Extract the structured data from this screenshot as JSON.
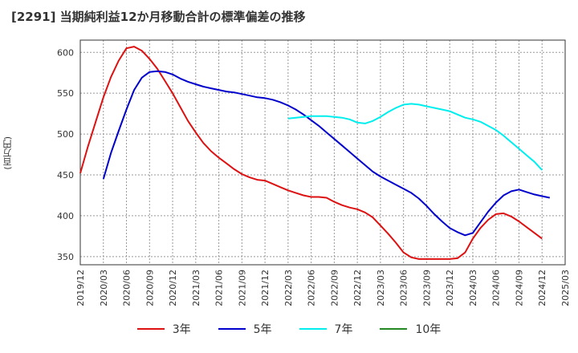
{
  "header": {
    "title": "[2291]  当期純利益12か月移動合計の標準偏差の推移"
  },
  "y_unit": "(百万円)",
  "chart_data": {
    "type": "line",
    "title": "[2291]  当期純利益12か月移動合計の標準偏差の推移",
    "ylabel": "(百万円)",
    "xlabel": "",
    "ylim": [
      340,
      615
    ],
    "x_range": [
      "2019-12",
      "2025-03"
    ],
    "yticks": [
      350,
      400,
      450,
      500,
      550,
      600
    ],
    "xticks": [
      "2019/12",
      "2020/03",
      "2020/06",
      "2020/09",
      "2020/12",
      "2021/03",
      "2021/06",
      "2021/09",
      "2021/12",
      "2022/03",
      "2022/06",
      "2022/09",
      "2022/12",
      "2023/03",
      "2023/06",
      "2023/09",
      "2023/12",
      "2024/03",
      "2024/06",
      "2024/09",
      "2024/12",
      "2025/03"
    ],
    "grid": true,
    "legend_position": "bottom",
    "series": [
      {
        "name": "3年",
        "color": "#dd1111",
        "points": [
          [
            "2019-12",
            452
          ],
          [
            "2020-01",
            485
          ],
          [
            "2020-02",
            515
          ],
          [
            "2020-03",
            545
          ],
          [
            "2020-04",
            570
          ],
          [
            "2020-05",
            590
          ],
          [
            "2020-06",
            605
          ],
          [
            "2020-07",
            607
          ],
          [
            "2020-08",
            602
          ],
          [
            "2020-09",
            592
          ],
          [
            "2020-10",
            580
          ],
          [
            "2020-11",
            565
          ],
          [
            "2020-12",
            550
          ],
          [
            "2021-01",
            533
          ],
          [
            "2021-02",
            516
          ],
          [
            "2021-03",
            502
          ],
          [
            "2021-04",
            489
          ],
          [
            "2021-05",
            479
          ],
          [
            "2021-06",
            471
          ],
          [
            "2021-07",
            464
          ],
          [
            "2021-08",
            457
          ],
          [
            "2021-09",
            451
          ],
          [
            "2021-10",
            447
          ],
          [
            "2021-11",
            444
          ],
          [
            "2021-12",
            443
          ],
          [
            "2022-01",
            439
          ],
          [
            "2022-02",
            435
          ],
          [
            "2022-03",
            431
          ],
          [
            "2022-04",
            428
          ],
          [
            "2022-05",
            425
          ],
          [
            "2022-06",
            423
          ],
          [
            "2022-07",
            423
          ],
          [
            "2022-08",
            422
          ],
          [
            "2022-09",
            417
          ],
          [
            "2022-10",
            413
          ],
          [
            "2022-11",
            410
          ],
          [
            "2022-12",
            408
          ],
          [
            "2023-01",
            404
          ],
          [
            "2023-02",
            398
          ],
          [
            "2023-03",
            388
          ],
          [
            "2023-04",
            378
          ],
          [
            "2023-05",
            367
          ],
          [
            "2023-06",
            355
          ],
          [
            "2023-07",
            349
          ],
          [
            "2023-08",
            347
          ],
          [
            "2023-09",
            347
          ],
          [
            "2023-10",
            347
          ],
          [
            "2023-11",
            347
          ],
          [
            "2023-12",
            347
          ],
          [
            "2024-01",
            348
          ],
          [
            "2024-02",
            355
          ],
          [
            "2024-03",
            372
          ],
          [
            "2024-04",
            385
          ],
          [
            "2024-05",
            395
          ],
          [
            "2024-06",
            402
          ],
          [
            "2024-07",
            403
          ],
          [
            "2024-08",
            399
          ],
          [
            "2024-09",
            393
          ],
          [
            "2024-10",
            386
          ],
          [
            "2024-11",
            379
          ],
          [
            "2024-12",
            372
          ]
        ]
      },
      {
        "name": "5年",
        "color": "#0000cc",
        "points": [
          [
            "2020-03",
            445
          ],
          [
            "2020-04",
            477
          ],
          [
            "2020-05",
            504
          ],
          [
            "2020-06",
            530
          ],
          [
            "2020-07",
            554
          ],
          [
            "2020-08",
            569
          ],
          [
            "2020-09",
            576
          ],
          [
            "2020-10",
            577
          ],
          [
            "2020-11",
            576
          ],
          [
            "2020-12",
            573
          ],
          [
            "2021-01",
            568
          ],
          [
            "2021-02",
            564
          ],
          [
            "2021-03",
            561
          ],
          [
            "2021-04",
            558
          ],
          [
            "2021-05",
            556
          ],
          [
            "2021-06",
            554
          ],
          [
            "2021-07",
            552
          ],
          [
            "2021-08",
            551
          ],
          [
            "2021-09",
            549
          ],
          [
            "2021-10",
            547
          ],
          [
            "2021-11",
            545
          ],
          [
            "2021-12",
            544
          ],
          [
            "2022-01",
            542
          ],
          [
            "2022-02",
            539
          ],
          [
            "2022-03",
            535
          ],
          [
            "2022-04",
            530
          ],
          [
            "2022-05",
            524
          ],
          [
            "2022-06",
            517
          ],
          [
            "2022-07",
            510
          ],
          [
            "2022-08",
            502
          ],
          [
            "2022-09",
            494
          ],
          [
            "2022-10",
            486
          ],
          [
            "2022-11",
            478
          ],
          [
            "2022-12",
            470
          ],
          [
            "2023-01",
            462
          ],
          [
            "2023-02",
            454
          ],
          [
            "2023-03",
            448
          ],
          [
            "2023-04",
            443
          ],
          [
            "2023-05",
            438
          ],
          [
            "2023-06",
            433
          ],
          [
            "2023-07",
            428
          ],
          [
            "2023-08",
            421
          ],
          [
            "2023-09",
            412
          ],
          [
            "2023-10",
            402
          ],
          [
            "2023-11",
            393
          ],
          [
            "2023-12",
            385
          ],
          [
            "2024-01",
            380
          ],
          [
            "2024-02",
            376
          ],
          [
            "2024-03",
            379
          ],
          [
            "2024-04",
            392
          ],
          [
            "2024-05",
            405
          ],
          [
            "2024-06",
            416
          ],
          [
            "2024-07",
            425
          ],
          [
            "2024-08",
            430
          ],
          [
            "2024-09",
            432
          ],
          [
            "2024-10",
            429
          ],
          [
            "2024-11",
            426
          ],
          [
            "2024-12",
            424
          ],
          [
            "2025-01",
            422
          ]
        ]
      },
      {
        "name": "7年",
        "color": "#00eeee",
        "points": [
          [
            "2022-03",
            519
          ],
          [
            "2022-04",
            520
          ],
          [
            "2022-05",
            521
          ],
          [
            "2022-06",
            522
          ],
          [
            "2022-07",
            522
          ],
          [
            "2022-08",
            522
          ],
          [
            "2022-09",
            521
          ],
          [
            "2022-10",
            520
          ],
          [
            "2022-11",
            518
          ],
          [
            "2022-12",
            514
          ],
          [
            "2023-01",
            513
          ],
          [
            "2023-02",
            516
          ],
          [
            "2023-03",
            521
          ],
          [
            "2023-04",
            527
          ],
          [
            "2023-05",
            532
          ],
          [
            "2023-06",
            536
          ],
          [
            "2023-07",
            537
          ],
          [
            "2023-08",
            536
          ],
          [
            "2023-09",
            534
          ],
          [
            "2023-10",
            532
          ],
          [
            "2023-11",
            530
          ],
          [
            "2023-12",
            528
          ],
          [
            "2024-01",
            524
          ],
          [
            "2024-02",
            520
          ],
          [
            "2024-03",
            518
          ],
          [
            "2024-04",
            515
          ],
          [
            "2024-05",
            510
          ],
          [
            "2024-06",
            505
          ],
          [
            "2024-07",
            498
          ],
          [
            "2024-08",
            490
          ],
          [
            "2024-09",
            482
          ],
          [
            "2024-10",
            474
          ],
          [
            "2024-11",
            466
          ],
          [
            "2024-12",
            456
          ]
        ]
      },
      {
        "name": "10年",
        "color": "#228822",
        "points": []
      }
    ]
  }
}
